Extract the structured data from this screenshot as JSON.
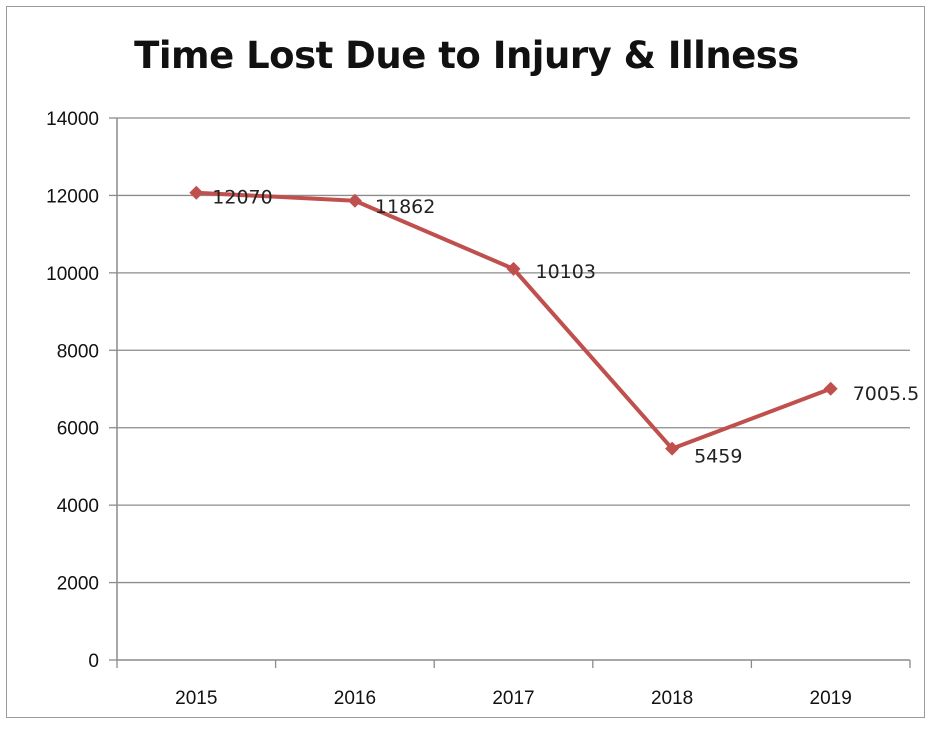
{
  "chart_data": {
    "type": "line",
    "title": "Time Lost Due to Injury & Illness",
    "xlabel": "",
    "ylabel": "",
    "categories": [
      "2015",
      "2016",
      "2017",
      "2018",
      "2019"
    ],
    "series": [
      {
        "values": [
          12070,
          11862,
          10103,
          5459,
          7005.5
        ],
        "labels": [
          "12070",
          "11862",
          "10103",
          "5459",
          "7005.5"
        ]
      }
    ],
    "ylim": [
      0,
      14000
    ],
    "yticks": [
      "0",
      "2000",
      "4000",
      "6000",
      "8000",
      "10000",
      "12000",
      "14000"
    ],
    "grid": true,
    "legend": "none",
    "colors": {
      "line": "#c0504d",
      "grid": "#8c8c8c",
      "axis": "#8c8c8c"
    }
  }
}
